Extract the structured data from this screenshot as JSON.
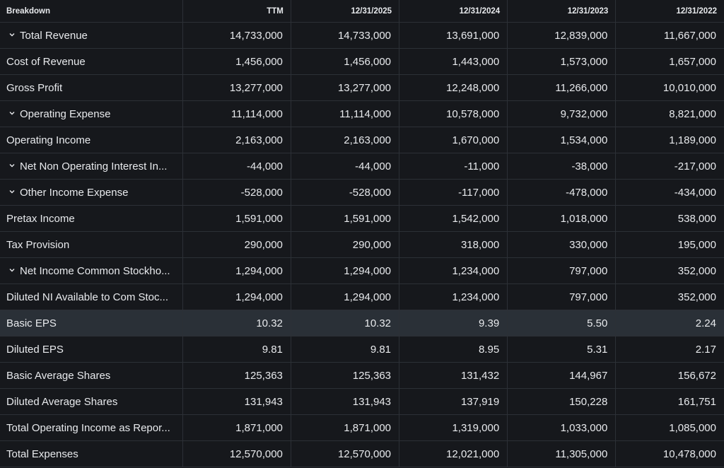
{
  "header": {
    "breakdown": "Breakdown",
    "columns": [
      "TTM",
      "12/31/2025",
      "12/31/2024",
      "12/31/2023",
      "12/31/2022"
    ]
  },
  "rows": [
    {
      "label": "Total Revenue",
      "expandable": true,
      "values": [
        "14,733,000",
        "14,733,000",
        "13,691,000",
        "12,839,000",
        "11,667,000"
      ]
    },
    {
      "label": "Cost of Revenue",
      "expandable": false,
      "values": [
        "1,456,000",
        "1,456,000",
        "1,443,000",
        "1,573,000",
        "1,657,000"
      ]
    },
    {
      "label": "Gross Profit",
      "expandable": false,
      "values": [
        "13,277,000",
        "13,277,000",
        "12,248,000",
        "11,266,000",
        "10,010,000"
      ]
    },
    {
      "label": "Operating Expense",
      "expandable": true,
      "values": [
        "11,114,000",
        "11,114,000",
        "10,578,000",
        "9,732,000",
        "8,821,000"
      ]
    },
    {
      "label": "Operating Income",
      "expandable": false,
      "values": [
        "2,163,000",
        "2,163,000",
        "1,670,000",
        "1,534,000",
        "1,189,000"
      ]
    },
    {
      "label": "Net Non Operating Interest In...",
      "expandable": true,
      "values": [
        "-44,000",
        "-44,000",
        "-11,000",
        "-38,000",
        "-217,000"
      ]
    },
    {
      "label": "Other Income Expense",
      "expandable": true,
      "values": [
        "-528,000",
        "-528,000",
        "-117,000",
        "-478,000",
        "-434,000"
      ]
    },
    {
      "label": "Pretax Income",
      "expandable": false,
      "values": [
        "1,591,000",
        "1,591,000",
        "1,542,000",
        "1,018,000",
        "538,000"
      ]
    },
    {
      "label": "Tax Provision",
      "expandable": false,
      "values": [
        "290,000",
        "290,000",
        "318,000",
        "330,000",
        "195,000"
      ]
    },
    {
      "label": "Net Income Common Stockho...",
      "expandable": true,
      "values": [
        "1,294,000",
        "1,294,000",
        "1,234,000",
        "797,000",
        "352,000"
      ]
    },
    {
      "label": "Diluted NI Available to Com Stoc...",
      "expandable": false,
      "values": [
        "1,294,000",
        "1,294,000",
        "1,234,000",
        "797,000",
        "352,000"
      ]
    },
    {
      "label": "Basic EPS",
      "expandable": false,
      "highlighted": true,
      "values": [
        "10.32",
        "10.32",
        "9.39",
        "5.50",
        "2.24"
      ]
    },
    {
      "label": "Diluted EPS",
      "expandable": false,
      "values": [
        "9.81",
        "9.81",
        "8.95",
        "5.31",
        "2.17"
      ]
    },
    {
      "label": "Basic Average Shares",
      "expandable": false,
      "values": [
        "125,363",
        "125,363",
        "131,432",
        "144,967",
        "156,672"
      ]
    },
    {
      "label": "Diluted Average Shares",
      "expandable": false,
      "values": [
        "131,943",
        "131,943",
        "137,919",
        "150,228",
        "161,751"
      ]
    },
    {
      "label": "Total Operating Income as Repor...",
      "expandable": false,
      "values": [
        "1,871,000",
        "1,871,000",
        "1,319,000",
        "1,033,000",
        "1,085,000"
      ]
    },
    {
      "label": "Total Expenses",
      "expandable": false,
      "values": [
        "12,570,000",
        "12,570,000",
        "12,021,000",
        "11,305,000",
        "10,478,000"
      ]
    }
  ],
  "icons": {
    "expand": "chevron-down-icon"
  },
  "colors": {
    "background": "#16181c",
    "highlight_row": "#2a3037",
    "grid": "#2c3036",
    "text": "#e8eaed"
  }
}
